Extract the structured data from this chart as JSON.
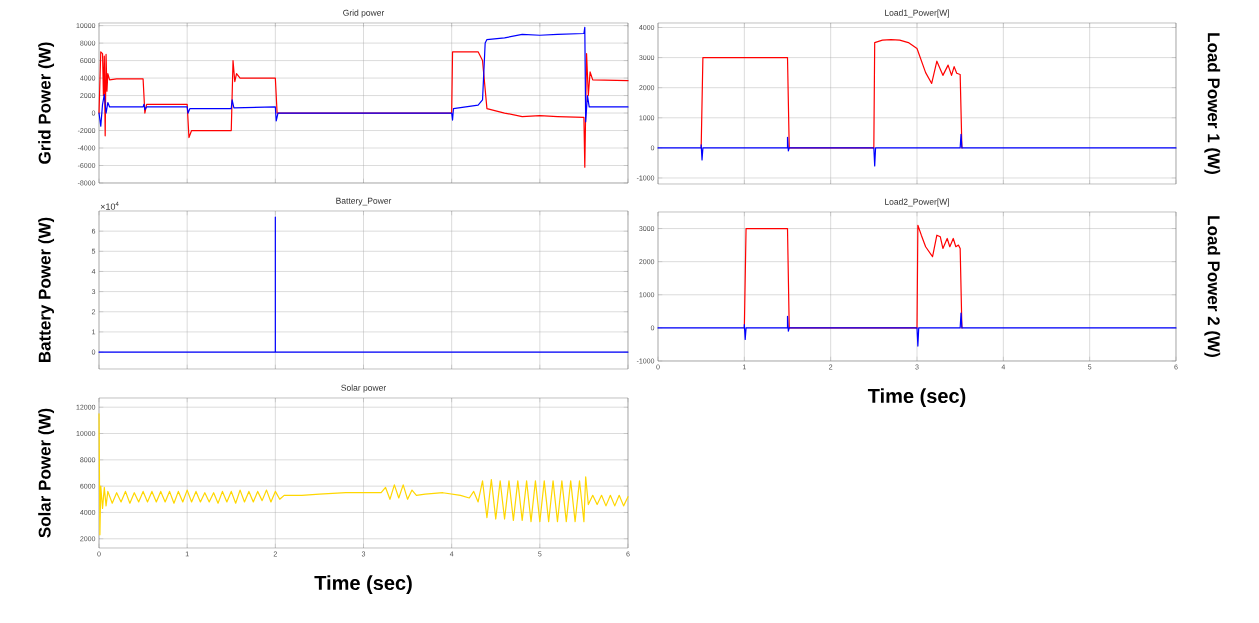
{
  "chart_data": [
    {
      "type": "line",
      "title": "Grid power",
      "ylabel": "Grid Power (W)",
      "xlim": [
        0,
        6
      ],
      "ylim": [
        -8000,
        10300
      ],
      "xticks": [
        0,
        1,
        2,
        3,
        4,
        5,
        6
      ],
      "yticks": [
        -8000,
        -6000,
        -4000,
        -2000,
        0,
        2000,
        4000,
        6000,
        8000,
        10000
      ],
      "grid": true,
      "tick_labels": "y",
      "series": [
        {
          "color": "#ff0000",
          "x": [
            0,
            0.02,
            0.04,
            0.05,
            0.06,
            0.07,
            0.08,
            0.09,
            0.1,
            0.12,
            0.2,
            0.5,
            0.52,
            0.54,
            1.0,
            1.02,
            1.05,
            1.5,
            1.52,
            1.54,
            1.56,
            1.6,
            2.0,
            2.02,
            4.0,
            4.01,
            4.3,
            4.35,
            4.4,
            4.6,
            4.8,
            5.0,
            5.2,
            5.5,
            5.51,
            5.53,
            5.55,
            5.57,
            5.6,
            6.0
          ],
          "values": [
            0,
            7000,
            6800,
            2000,
            6500,
            -2600,
            6700,
            2500,
            4500,
            3800,
            3900,
            3900,
            0,
            1000,
            1000,
            -2800,
            -2000,
            -2000,
            6000,
            3600,
            4500,
            4000,
            4000,
            0,
            0,
            7000,
            7000,
            6000,
            500,
            0,
            -400,
            -300,
            -400,
            -500,
            -6200,
            6800,
            2000,
            4700,
            3800,
            3700
          ]
        },
        {
          "color": "#0000ff",
          "x": [
            0,
            0.02,
            0.04,
            0.06,
            0.08,
            0.1,
            0.12,
            0.5,
            0.51,
            0.52,
            0.54,
            1.0,
            1.01,
            1.03,
            1.5,
            1.51,
            1.53,
            2.0,
            2.01,
            2.03,
            4.0,
            4.01,
            4.02,
            4.3,
            4.35,
            4.38,
            4.4,
            4.6,
            4.8,
            5.0,
            5.2,
            5.5,
            5.51,
            5.52,
            5.54,
            5.56,
            6.0
          ],
          "values": [
            0,
            -1500,
            1000,
            2100,
            0,
            1200,
            700,
            700,
            1000,
            400,
            700,
            700,
            0,
            500,
            500,
            1500,
            600,
            700,
            -900,
            0,
            0,
            -800,
            500,
            900,
            1500,
            8000,
            8400,
            8600,
            9000,
            8900,
            9000,
            9100,
            9800,
            -1000,
            2000,
            700,
            700
          ]
        }
      ]
    },
    {
      "type": "line",
      "title": "Battery_Power",
      "ylabel": "Battery Power (W)",
      "annotations": [
        "×10$^{4}$"
      ],
      "xlim": [
        0,
        6
      ],
      "ylim": [
        -0.84,
        7.0
      ],
      "xticks": [
        0,
        1,
        2,
        3,
        4,
        5,
        6
      ],
      "yticks": [
        0,
        1,
        2,
        3,
        4,
        5,
        6
      ],
      "grid": true,
      "tick_labels": "y",
      "series": [
        {
          "color": "#0000ff",
          "x": [
            0,
            2,
            2,
            2,
            6
          ],
          "values": [
            0,
            0,
            6.7,
            0,
            0
          ]
        }
      ]
    },
    {
      "type": "line",
      "title": "Solar power",
      "ylabel": "Solar Power (W)",
      "xlabel": "Time (sec)",
      "xlim": [
        0,
        6
      ],
      "ylim": [
        1300,
        12700
      ],
      "xticks": [
        0,
        1,
        2,
        3,
        4,
        5,
        6
      ],
      "yticks": [
        2000,
        4000,
        6000,
        8000,
        10000,
        12000
      ],
      "grid": true,
      "series": [
        {
          "color": "#ffd700",
          "x": [
            0,
            0.01,
            0.02,
            0.04,
            0.06,
            0.08,
            0.1,
            0.15,
            0.2,
            0.25,
            0.3,
            0.35,
            0.4,
            0.45,
            0.5,
            0.55,
            0.6,
            0.65,
            0.7,
            0.75,
            0.8,
            0.85,
            0.9,
            0.95,
            1.0,
            1.05,
            1.1,
            1.15,
            1.2,
            1.25,
            1.3,
            1.35,
            1.4,
            1.45,
            1.5,
            1.55,
            1.6,
            1.65,
            1.7,
            1.75,
            1.8,
            1.85,
            1.9,
            1.95,
            2.0,
            2.05,
            2.1,
            2.3,
            2.5,
            2.8,
            3.0,
            3.2,
            3.25,
            3.3,
            3.35,
            3.4,
            3.45,
            3.5,
            3.55,
            3.6,
            3.7,
            3.9,
            4.1,
            4.2,
            4.25,
            4.3,
            4.35,
            4.4,
            4.45,
            4.5,
            4.55,
            4.6,
            4.65,
            4.7,
            4.75,
            4.8,
            4.85,
            4.9,
            4.95,
            5.0,
            5.05,
            5.1,
            5.15,
            5.2,
            5.25,
            5.3,
            5.35,
            5.4,
            5.45,
            5.5,
            5.52,
            5.55,
            5.6,
            5.65,
            5.7,
            5.75,
            5.8,
            5.85,
            5.9,
            5.95,
            6.0
          ],
          "values": [
            11500,
            2300,
            6000,
            4300,
            5900,
            4500,
            5600,
            4700,
            5500,
            4800,
            5600,
            4700,
            5500,
            4800,
            5600,
            4800,
            5600,
            4800,
            5600,
            4800,
            5600,
            4700,
            5600,
            4800,
            5700,
            4800,
            5600,
            4800,
            5500,
            4800,
            5500,
            4700,
            5600,
            4800,
            5600,
            4700,
            5700,
            4800,
            5600,
            4800,
            5600,
            4900,
            5700,
            4800,
            5600,
            5000,
            5300,
            5300,
            5400,
            5500,
            5500,
            5500,
            5900,
            5000,
            6100,
            5100,
            6100,
            5000,
            5700,
            5300,
            5400,
            5500,
            5300,
            5100,
            5600,
            4800,
            6400,
            3600,
            6500,
            3500,
            6400,
            3500,
            6400,
            3400,
            6400,
            3400,
            6400,
            3300,
            6400,
            3300,
            6400,
            3300,
            6400,
            3300,
            6400,
            3300,
            6400,
            3300,
            6400,
            3300,
            6700,
            4600,
            5300,
            4600,
            5300,
            4500,
            5300,
            4500,
            5300,
            4500,
            5200
          ]
        }
      ]
    },
    {
      "type": "line",
      "title": "Load1_Power[W]",
      "ylabel": "Load Power 1 (W)",
      "xlim": [
        0,
        6
      ],
      "ylim": [
        -1200,
        4150
      ],
      "xticks": [
        0,
        1,
        2,
        3,
        4,
        5,
        6
      ],
      "yticks": [
        -1000,
        0,
        1000,
        2000,
        3000,
        4000
      ],
      "grid": true,
      "tick_labels": "y",
      "series": [
        {
          "color": "#ff0000",
          "x": [
            0.5,
            0.52,
            1.5,
            1.52,
            2.5,
            2.51,
            2.6,
            2.7,
            2.8,
            2.9,
            3.0,
            3.05,
            3.1,
            3.17,
            3.23,
            3.3,
            3.36,
            3.4,
            3.43,
            3.46,
            3.5,
            3.52
          ],
          "values": [
            0,
            3000,
            3000,
            0,
            0,
            3500,
            3580,
            3600,
            3580,
            3500,
            3300,
            2900,
            2500,
            2140,
            2880,
            2410,
            2750,
            2410,
            2700,
            2480,
            2440,
            0
          ]
        },
        {
          "color": "#0000ff",
          "x": [
            0,
            0.5,
            0.5,
            0.51,
            0.52,
            1.5,
            1.5,
            1.51,
            1.52,
            2.5,
            2.51,
            2.52,
            3.5,
            3.51,
            3.52,
            6
          ],
          "values": [
            0,
            0,
            100,
            -400,
            0,
            0,
            350,
            -100,
            0,
            0,
            -600,
            0,
            0,
            450,
            0,
            0
          ]
        }
      ]
    },
    {
      "type": "line",
      "title": "Load2_Power[W]",
      "ylabel": "Load Power 2 (W)",
      "xlabel": "Time (sec)",
      "xlim": [
        0,
        6
      ],
      "ylim": [
        -1000,
        3500
      ],
      "xticks": [
        0,
        1,
        2,
        3,
        4,
        5,
        6
      ],
      "yticks": [
        -1000,
        0,
        1000,
        2000,
        3000
      ],
      "grid": true,
      "series": [
        {
          "color": "#ff0000",
          "x": [
            1.0,
            1.02,
            1.5,
            1.52,
            3.0,
            3.01,
            3.05,
            3.1,
            3.18,
            3.23,
            3.27,
            3.3,
            3.35,
            3.38,
            3.42,
            3.45,
            3.48,
            3.5,
            3.52
          ],
          "values": [
            0,
            3000,
            3000,
            0,
            0,
            3100,
            2800,
            2450,
            2150,
            2800,
            2750,
            2400,
            2700,
            2450,
            2700,
            2450,
            2500,
            2400,
            0
          ]
        },
        {
          "color": "#0000ff",
          "x": [
            0,
            1.0,
            1.0,
            1.01,
            1.02,
            1.5,
            1.5,
            1.51,
            1.52,
            3.0,
            3.01,
            3.02,
            3.5,
            3.51,
            3.52,
            6
          ],
          "values": [
            0,
            0,
            100,
            -350,
            0,
            0,
            350,
            -100,
            0,
            0,
            -550,
            0,
            0,
            450,
            0,
            0
          ]
        }
      ]
    }
  ]
}
